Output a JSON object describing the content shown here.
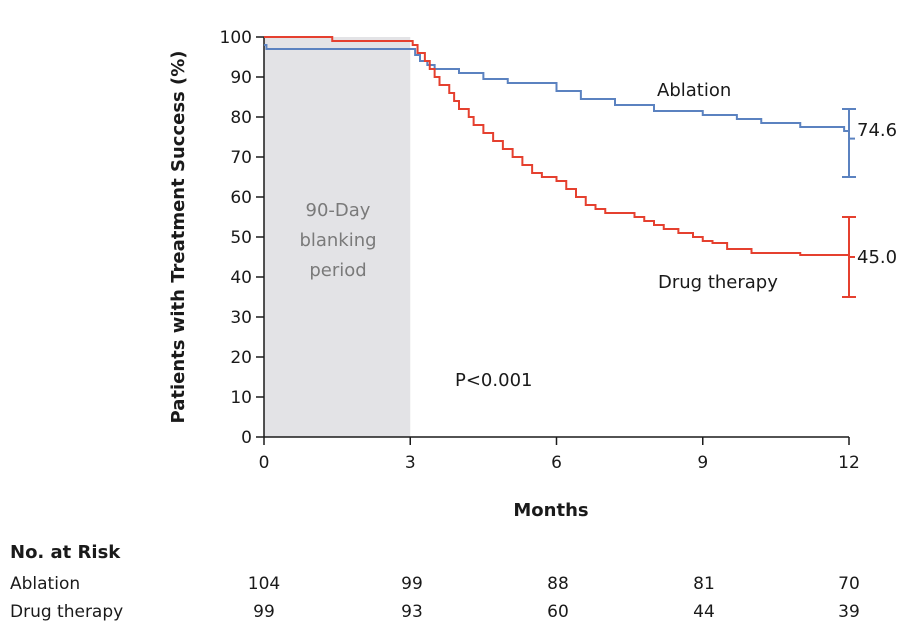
{
  "chart_data": {
    "type": "line",
    "xlabel": "Months",
    "ylabel": "Patients with Treatment Success (%)",
    "xlim": [
      0,
      12
    ],
    "ylim": [
      0,
      100
    ],
    "x_ticks": [
      "0",
      "3",
      "6",
      "9",
      "12"
    ],
    "y_ticks": [
      "0",
      "10",
      "20",
      "30",
      "40",
      "50",
      "60",
      "70",
      "80",
      "90",
      "100"
    ],
    "grid": false,
    "shaded_region": {
      "x": [
        0,
        3
      ],
      "label": [
        "90-Day",
        "blanking",
        "period"
      ],
      "color": "#e3e3e6"
    },
    "annotation": "P<0.001",
    "series": [
      {
        "name": "Ablation",
        "color": "#5b82c0",
        "end_value": "74.6",
        "ci": [
          65,
          82
        ],
        "x": [
          0,
          0.05,
          3.0,
          3.1,
          3.2,
          3.35,
          3.5,
          4.0,
          4.5,
          5.0,
          6.0,
          6.5,
          7.2,
          8.0,
          9.0,
          9.7,
          10.2,
          11.0,
          11.9,
          12.0
        ],
        "y": [
          98,
          97,
          97,
          95.5,
          94,
          93,
          92,
          91,
          89.5,
          88.5,
          86.5,
          84.5,
          83,
          81.5,
          80.5,
          79.5,
          78.5,
          77.5,
          76.5,
          74.6
        ]
      },
      {
        "name": "Drug therapy",
        "color": "#e5402f",
        "end_value": "45.0",
        "ci": [
          35,
          55
        ],
        "x": [
          0,
          1.4,
          3.0,
          3.05,
          3.15,
          3.3,
          3.4,
          3.5,
          3.6,
          3.8,
          3.9,
          4.0,
          4.2,
          4.3,
          4.5,
          4.7,
          4.9,
          5.1,
          5.3,
          5.5,
          5.7,
          6.0,
          6.2,
          6.4,
          6.6,
          6.8,
          7.0,
          7.3,
          7.6,
          7.8,
          8.0,
          8.2,
          8.5,
          8.8,
          9.0,
          9.2,
          9.5,
          10.0,
          11.0,
          12.0
        ],
        "y": [
          100,
          99,
          99,
          98,
          96,
          94,
          92,
          90,
          88,
          86,
          84,
          82,
          80,
          78,
          76,
          74,
          72,
          70,
          68,
          66,
          65,
          64,
          62,
          60,
          58,
          57,
          56,
          56,
          55,
          54,
          53,
          52,
          51,
          50,
          49,
          48.5,
          47,
          46,
          45.5,
          45
        ]
      }
    ]
  },
  "risk_table": {
    "title": "No. at Risk",
    "rows": [
      {
        "label": "Ablation",
        "values": [
          "104",
          "99",
          "88",
          "81",
          "70"
        ]
      },
      {
        "label": "Drug therapy",
        "values": [
          "99",
          "93",
          "60",
          "44",
          "39"
        ]
      }
    ]
  }
}
